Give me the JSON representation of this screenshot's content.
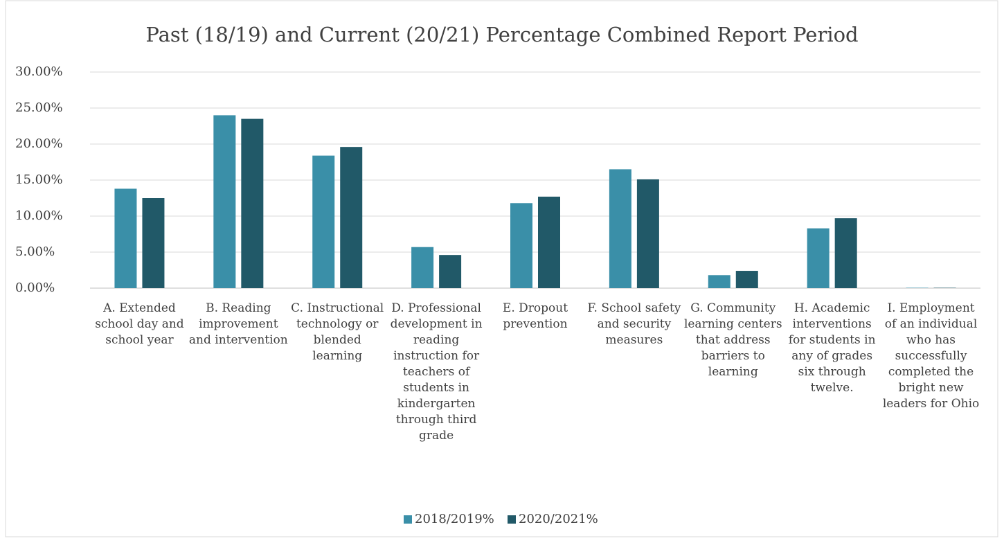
{
  "chart_data": {
    "type": "bar",
    "title": "Past (18/19) and Current (20/21) Percentage Combined Report Period",
    "categories": [
      "A.   Extended school day and school year",
      "B.   Reading improvement and intervention",
      "C. Instructional technology or blended learning",
      "D. Professional development in reading instruction for teachers of students in kindergarten through third grade",
      "E.   Dropout prevention",
      "F.   School safety and security measures",
      "G. Community learning centers that address barriers to learning",
      "H.  Academic interventions for students in any of grades six through twelve.",
      "I. Employment of an individual who has successfully completed the bright new leaders for Ohio"
    ],
    "series": [
      {
        "name": "2018/2019%",
        "color": "#3a8fa8",
        "values": [
          13.8,
          24.0,
          18.4,
          5.7,
          11.8,
          16.5,
          1.8,
          8.3,
          0.05
        ]
      },
      {
        "name": "2020/2021%",
        "color": "#215968",
        "values": [
          12.5,
          23.5,
          19.6,
          4.6,
          12.7,
          15.1,
          2.4,
          9.7,
          0.05
        ]
      }
    ],
    "ylim": [
      0,
      30
    ],
    "yticks": [
      {
        "value": 0,
        "label": "0.00%"
      },
      {
        "value": 5,
        "label": "5.00%"
      },
      {
        "value": 10,
        "label": "10.00%"
      },
      {
        "value": 15,
        "label": "15.00%"
      },
      {
        "value": 20,
        "label": "20.00%"
      },
      {
        "value": 25,
        "label": "25.00%"
      },
      {
        "value": 30,
        "label": "30.00%"
      }
    ],
    "grid": true,
    "legend": "bottom"
  }
}
